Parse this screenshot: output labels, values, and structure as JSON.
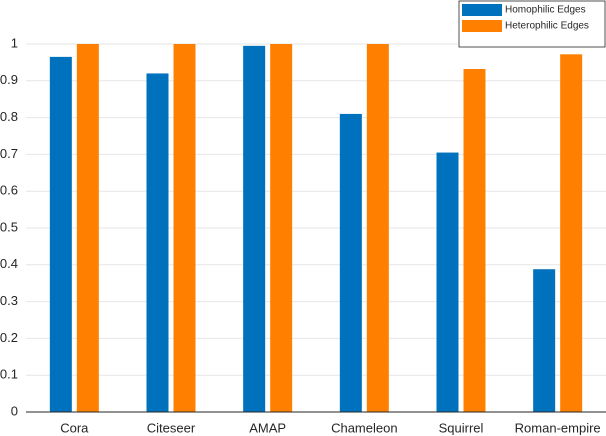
{
  "chart_data": {
    "type": "bar",
    "categories": [
      "Cora",
      "Citeseer",
      "AMAP",
      "Chameleon",
      "Squirrel",
      "Roman-empire"
    ],
    "series": [
      {
        "name": "Homophilic Edges",
        "color": "#0072bd",
        "values": [
          0.965,
          0.92,
          0.995,
          0.81,
          0.705,
          0.388
        ]
      },
      {
        "name": "Heterophilic Edges",
        "color": "#ff8000",
        "values": [
          1.0,
          1.0,
          1.0,
          1.0,
          0.932,
          0.972
        ]
      }
    ],
    "ylim": [
      0,
      1
    ],
    "yticks": [
      0,
      0.1,
      0.2,
      0.3,
      0.4,
      0.5,
      0.6,
      0.7,
      0.8,
      0.9,
      1
    ],
    "grid": true,
    "legend": "top-right"
  }
}
